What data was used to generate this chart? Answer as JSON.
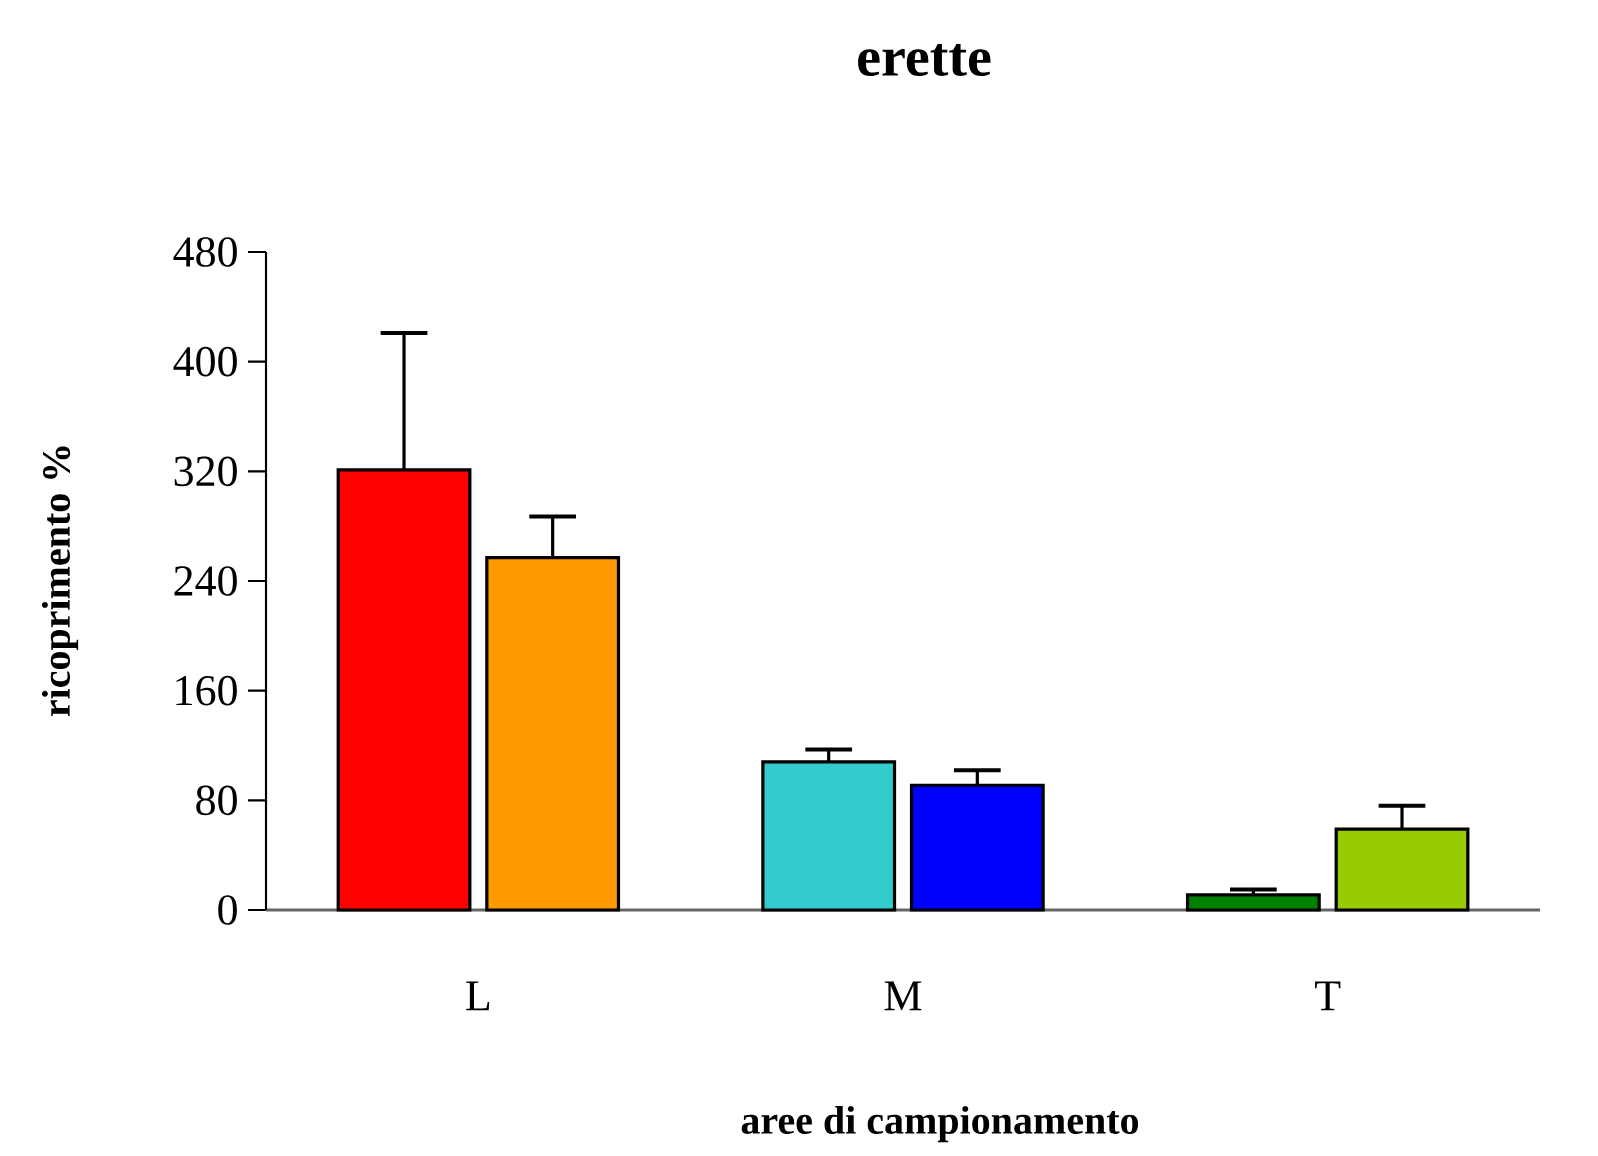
{
  "chart_data": {
    "type": "bar",
    "title": "erette",
    "xlabel": "aree di campionamento",
    "ylabel": "ricoprimento %",
    "categories": [
      "L",
      "M",
      "T"
    ],
    "series": [
      {
        "colors": [
          "#ff0000",
          "#33cccc",
          "#008000"
        ],
        "values": [
          321,
          108,
          11
        ],
        "errors": [
          [
            321,
            421
          ],
          [
            108,
            117
          ],
          [
            11,
            15
          ]
        ]
      },
      {
        "colors": [
          "#ff9900",
          "#0000ff",
          "#99cc00"
        ],
        "values": [
          257,
          91,
          59
        ],
        "errors": [
          [
            257,
            287
          ],
          [
            91,
            102
          ],
          [
            59,
            76
          ]
        ]
      }
    ],
    "ylim": [
      0,
      480
    ],
    "yticks": [
      0,
      80,
      160,
      240,
      320,
      400,
      480
    ]
  }
}
